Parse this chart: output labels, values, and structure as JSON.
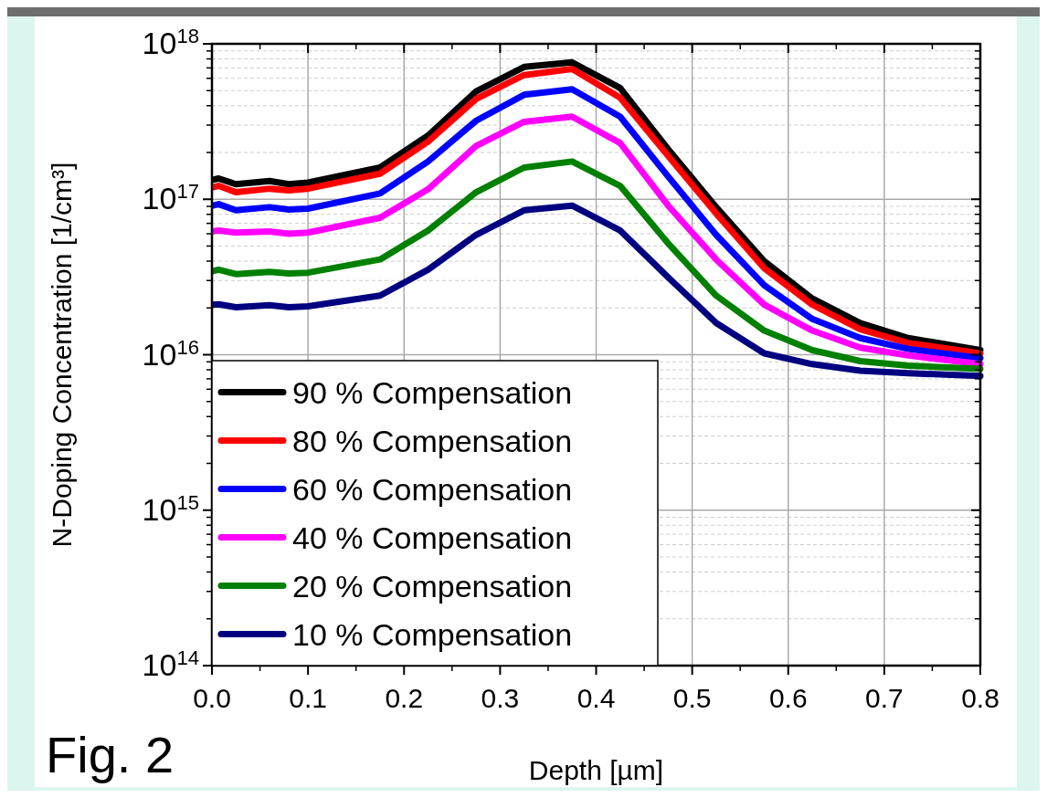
{
  "chart_data": {
    "type": "line",
    "xlabel": "Depth [µm]",
    "ylabel": "N-Doping Concentration [1/cm³]",
    "annotations": [
      "Fig. 2"
    ],
    "x": [
      0,
      0.007,
      0.025,
      0.06,
      0.08,
      0.1,
      0.175,
      0.225,
      0.275,
      0.325,
      0.375,
      0.425,
      0.475,
      0.525,
      0.575,
      0.625,
      0.675,
      0.725,
      0.8
    ],
    "series": [
      {
        "name": "90 % Compensation",
        "color": "#000000",
        "values": [
          1.33e+17,
          1.36e+17,
          1.25e+17,
          1.31e+17,
          1.25e+17,
          1.28e+17,
          1.6e+17,
          2.57e+17,
          4.94e+17,
          7.1e+17,
          7.6e+17,
          5.2e+17,
          2.1e+17,
          8.9e+16,
          4e+16,
          2.3e+16,
          1.6e+16,
          1.28e+16,
          1.07e+16
        ]
      },
      {
        "name": "80 % Compensation",
        "color": "#ff0000",
        "values": [
          1.19e+17,
          1.22e+17,
          1.11e+17,
          1.17e+17,
          1.14e+17,
          1.17e+17,
          1.46e+17,
          2.35e+17,
          4.42e+17,
          6.3e+17,
          6.9e+17,
          4.5e+17,
          1.9e+17,
          8.1e+16,
          3.6e+16,
          2.1e+16,
          1.46e+16,
          1.19e+16,
          1.02e+16
        ]
      },
      {
        "name": "60 % Compensation",
        "color": "#0000ff",
        "values": [
          9.1e+16,
          9.3e+16,
          8.5e+16,
          8.9e+16,
          8.6e+16,
          8.7e+16,
          1.09e+17,
          1.75e+17,
          3.2e+17,
          4.7e+17,
          5.1e+17,
          3.4e+17,
          1.4e+17,
          5.9e+16,
          2.8e+16,
          1.7e+16,
          1.28e+16,
          1.09e+16,
          9500000000000000.0
        ]
      },
      {
        "name": "40 % Compensation",
        "color": "#ff00ff",
        "values": [
          6.2e+16,
          6.3e+16,
          6.1e+16,
          6.2e+16,
          6e+16,
          6.1e+16,
          7.6e+16,
          1.16e+17,
          2.2e+17,
          3.15e+17,
          3.4e+17,
          2.3e+17,
          9.1e+16,
          4.1e+16,
          2.1e+16,
          1.43e+16,
          1.11e+16,
          9900000000000000.0,
          8700000000000000.0
        ]
      },
      {
        "name": "20 % Compensation",
        "color": "#008000",
        "values": [
          3.44e+16,
          3.52e+16,
          3.3e+16,
          3.41e+16,
          3.33e+16,
          3.37e+16,
          4.1e+16,
          6.3e+16,
          1.11e+17,
          1.6e+17,
          1.75e+17,
          1.22e+17,
          5.2e+16,
          2.4e+16,
          1.43e+16,
          1.07e+16,
          9100000000000000.0,
          8500000000000000.0,
          8100000000000000.0
        ]
      },
      {
        "name": "10 % Compensation",
        "color": "#000080",
        "values": [
          2.1e+16,
          2.11e+16,
          2.02e+16,
          2.08e+16,
          2.02e+16,
          2.05e+16,
          2.4e+16,
          3.52e+16,
          5.9e+16,
          8.5e+16,
          9.1e+16,
          6.3e+16,
          3.15e+16,
          1.6e+16,
          1.02e+16,
          8700000000000000.0,
          7900000000000000.0,
          7600000000000000.0,
          7300000000000000.0
        ]
      }
    ],
    "xlim": [
      0,
      0.8
    ],
    "xticks": [
      {
        "value": 0,
        "label": "0.0"
      },
      0.1,
      0.2,
      0.3,
      0.4,
      0.5,
      0.6,
      0.7,
      0.8
    ],
    "ylim": [
      100000000000000.0,
      1e+18
    ],
    "log": "y",
    "yticks": [
      {
        "value": 100000000000000.0,
        "label": "10$^{14}$"
      },
      {
        "value": 1000000000000000.0,
        "label": "10$^{15}$"
      },
      {
        "value": 1e+16,
        "label": "10$^{16}$"
      },
      {
        "value": 1e+17,
        "label": "10$^{17}$"
      },
      {
        "value": 1e+18,
        "label": "10$^{18}$"
      }
    ],
    "grid": true,
    "legend": "bottom left",
    "line_style": "solid",
    "marker": "none"
  }
}
